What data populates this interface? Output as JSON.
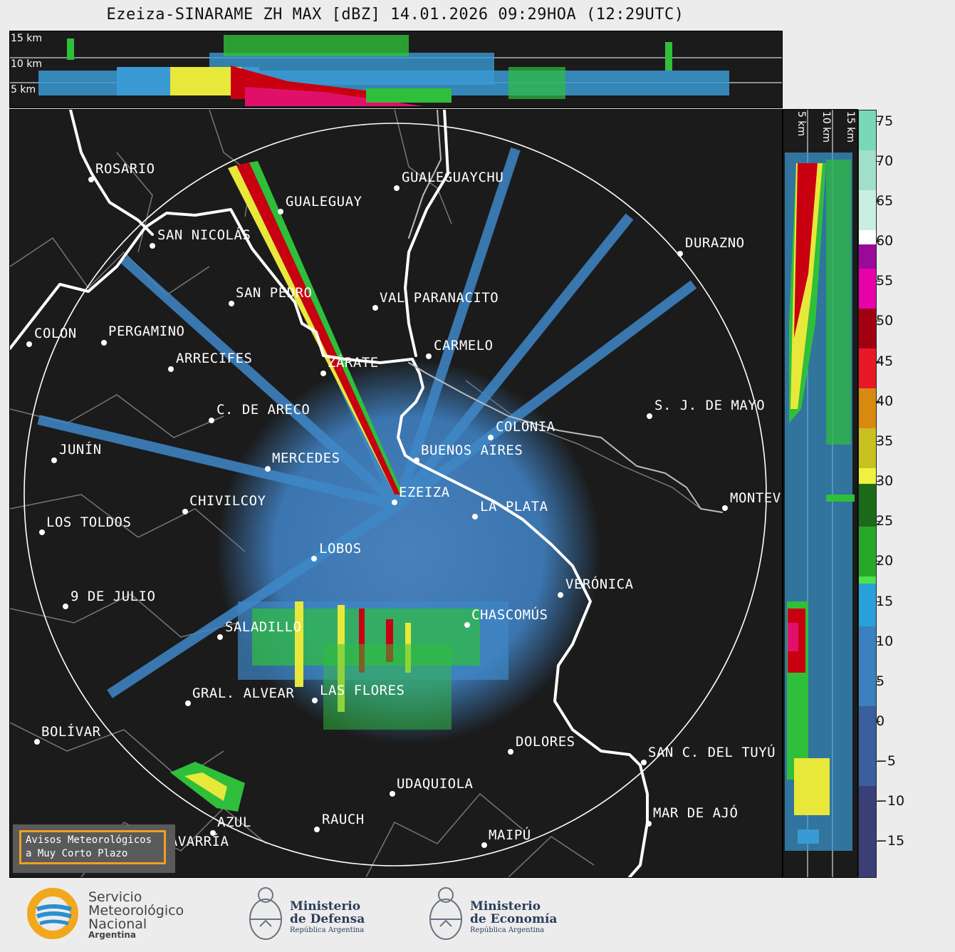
{
  "title": "Ezeiza-SINARAME ZH MAX [dBZ] 14.01.2026 09:29HOA (12:29UTC)",
  "height_labels_top": [
    "15 km",
    "10 km",
    "5 km"
  ],
  "height_labels_side": [
    "5 km",
    "10 km",
    "15 km"
  ],
  "colorbar": {
    "ticks": [
      "75",
      "70",
      "65",
      "60",
      "55",
      "50",
      "45",
      "40",
      "35",
      "30",
      "25",
      "20",
      "15",
      "10",
      "5",
      "0",
      "−5",
      "−10",
      "−15"
    ]
  },
  "cities": [
    {
      "name": "ROSARIO"
    },
    {
      "name": "GUALEGUAYCHU"
    },
    {
      "name": "GUALEGUAY"
    },
    {
      "name": "SAN NICOLÁS"
    },
    {
      "name": "DURAZNO"
    },
    {
      "name": "SAN PEDRO"
    },
    {
      "name": "VAL PARANACITO"
    },
    {
      "name": "COLON"
    },
    {
      "name": "PERGAMINO"
    },
    {
      "name": "CARMELO"
    },
    {
      "name": "ARRECIFES"
    },
    {
      "name": "ZÁRATE"
    },
    {
      "name": "C. DE ARECO"
    },
    {
      "name": "S. J. DE MAYO"
    },
    {
      "name": "COLONIA"
    },
    {
      "name": "JUNÍN"
    },
    {
      "name": "BUENOS AIRES"
    },
    {
      "name": "MERCEDES"
    },
    {
      "name": "EZEIZA"
    },
    {
      "name": "MONTEV"
    },
    {
      "name": "CHIVILCOY"
    },
    {
      "name": "LA PLATA"
    },
    {
      "name": "LOS TOLDOS"
    },
    {
      "name": "LOBOS"
    },
    {
      "name": "VERÓNICA"
    },
    {
      "name": "9 DE JULIO"
    },
    {
      "name": "CHASCOMÚS"
    },
    {
      "name": "SALADILLO"
    },
    {
      "name": "GRAL. ALVEAR"
    },
    {
      "name": "LAS FLORES"
    },
    {
      "name": "BOLÍVAR"
    },
    {
      "name": "DOLORES"
    },
    {
      "name": "SAN C. DEL TUYÚ"
    },
    {
      "name": "UDAQUIOLA"
    },
    {
      "name": "MAR DE AJÓ"
    },
    {
      "name": "AZUL"
    },
    {
      "name": "RAUCH"
    },
    {
      "name": "MAIPÚ"
    },
    {
      "name": "OLAVARRÍA"
    }
  ],
  "warning_box": {
    "line1": "Avisos Meteorológicos",
    "line2": "a Muy Corto Plazo"
  },
  "logos": {
    "smn": {
      "line1": "Servicio",
      "line2": "Meteorológico",
      "line3": "Nacional",
      "line4": "Argentina"
    },
    "defensa": {
      "line1": "Ministerio",
      "line2": "de Defensa",
      "line3": "República Argentina"
    },
    "economia": {
      "line1": "Ministerio",
      "line2": "de Economía",
      "line3": "República Argentina"
    }
  }
}
